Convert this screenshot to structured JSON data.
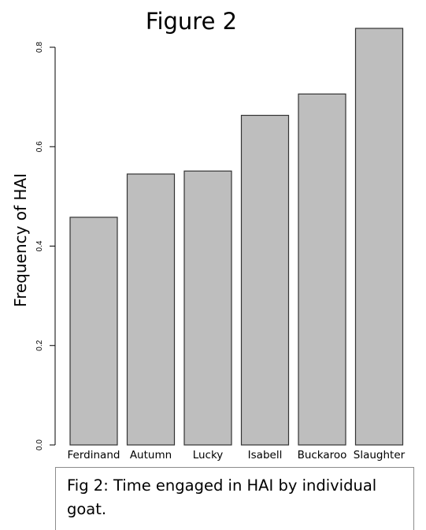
{
  "chart_data": {
    "type": "bar",
    "title": "Figure 2",
    "ylabel": "Frequency of HAI",
    "xlabel": "",
    "categories": [
      "Ferdinand",
      "Autumn",
      "Lucky",
      "Isabell",
      "Buckaroo",
      "Slaughter"
    ],
    "values": [
      0.458,
      0.545,
      0.551,
      0.663,
      0.706,
      0.838
    ],
    "ylim": [
      0,
      0.84
    ],
    "yticks": [
      "0.0",
      "0.2",
      "0.4",
      "0.6",
      "0.8"
    ],
    "ytick_values": [
      0,
      0.2,
      0.4,
      0.6,
      0.8
    ],
    "bar_color": "#bebebe",
    "grid": false,
    "caption": "Fig 2: Time engaged in HAI by individual goat."
  }
}
